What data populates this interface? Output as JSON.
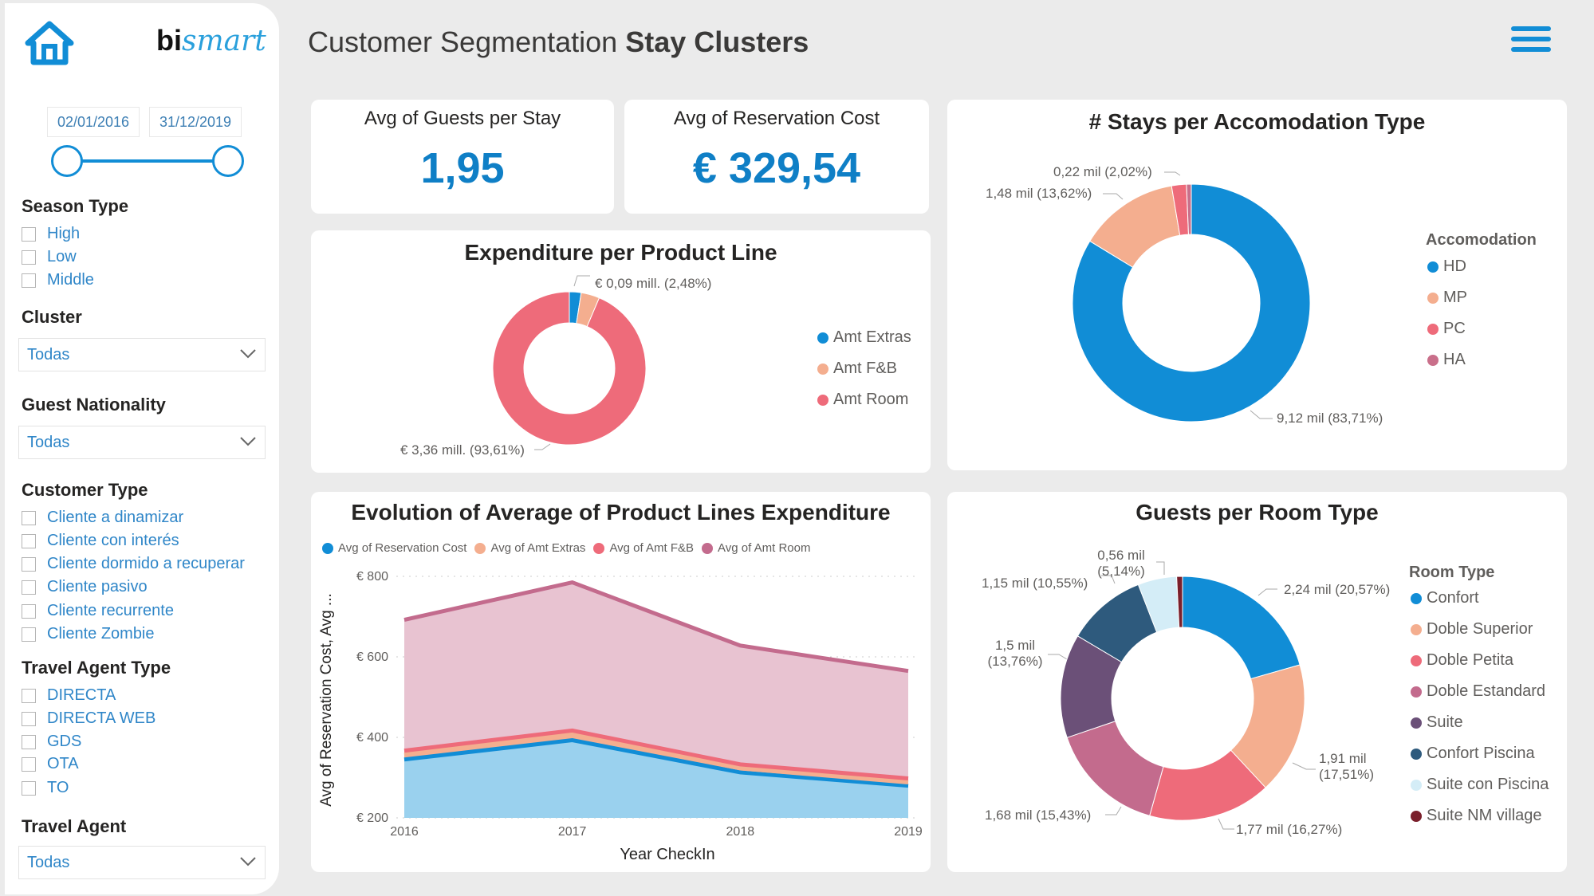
{
  "header": {
    "title_light": "Customer Segmentation",
    "title_bold": "Stay Clusters",
    "menu_icon": "hamburger-icon"
  },
  "sidebar": {
    "home_icon": "home-icon",
    "logo": "bismart",
    "date_start": "02/01/2016",
    "date_end": "31/12/2019",
    "season_type": {
      "title": "Season Type",
      "items": [
        "High",
        "Low",
        "Middle"
      ]
    },
    "cluster": {
      "title": "Cluster",
      "value": "Todas"
    },
    "guest_nationality": {
      "title": "Guest Nationality",
      "value": "Todas"
    },
    "customer_type": {
      "title": "Customer Type",
      "items": [
        "Cliente a dinamizar",
        "Cliente con interés",
        "Cliente dormido a recuperar",
        "Cliente pasivo",
        "Cliente recurrente",
        "Cliente Zombie"
      ]
    },
    "travel_agent_type": {
      "title": "Travel Agent Type",
      "items": [
        "DIRECTA",
        "DIRECTA WEB",
        "GDS",
        "OTA",
        "TO"
      ]
    },
    "travel_agent": {
      "title": "Travel Agent",
      "value": "Todas"
    }
  },
  "kpis": [
    {
      "label": "Avg of Guests per Stay",
      "value": "1,95"
    },
    {
      "label": "Avg of Reservation Cost",
      "value": "€ 329,54"
    }
  ],
  "colors": {
    "accent": "#118dd6",
    "text_blue": "#2f86c8"
  },
  "chart_data": [
    {
      "type": "pie",
      "donut": true,
      "title": "Expenditure per Product Line",
      "categories": [
        "Amt Extras",
        "Amt F&B",
        "Amt Room"
      ],
      "values": [
        2.48,
        3.91,
        93.61
      ],
      "colors": [
        "#118dd6",
        "#f4ae8f",
        "#ee6b7a"
      ],
      "data_labels": [
        "€ 0,09 mill. (2,48%)",
        "",
        "€ 3,36 mill. (93,61%)"
      ],
      "legend": "right"
    },
    {
      "type": "pie",
      "donut": true,
      "title": "# Stays per Accomodation Type",
      "legend_title": "Accomodation",
      "categories": [
        "HD",
        "MP",
        "PC",
        "HA"
      ],
      "values": [
        83.71,
        13.62,
        2.02,
        0.65
      ],
      "colors": [
        "#118dd6",
        "#f4ae8f",
        "#ee6b7a",
        "#c96f8a"
      ],
      "data_labels": [
        "9,12 mil (83,71%)",
        "1,48 mil (13,62%)",
        "0,22 mil (2,02%)",
        ""
      ],
      "legend": "right"
    },
    {
      "type": "area",
      "title": "Evolution of Average of Product Lines Expenditure",
      "x": [
        "2016",
        "2017",
        "2018",
        "2019"
      ],
      "xlabel": "Year CheckIn",
      "ylabel": "Avg of Reservation Cost, Avg ...",
      "ylim": [
        200,
        800
      ],
      "yticks": [
        "€ 200",
        "€ 400",
        "€ 600",
        "€ 800"
      ],
      "ytick_values": [
        200,
        400,
        600,
        800
      ],
      "grid": true,
      "legend": "top-left",
      "series": [
        {
          "name": "Avg of Amt Room",
          "values": [
            692,
            785,
            628,
            565
          ],
          "color": "#c36b8d",
          "fill": "#e8c3d1"
        },
        {
          "name": "Avg of Amt F&B",
          "values": [
            367,
            417,
            333,
            298
          ],
          "color": "#ee6b7a",
          "fill": "#f4ae8f"
        },
        {
          "name": "Avg of Amt Extras",
          "values": [
            356,
            406,
            323,
            288
          ],
          "color": "#f4ae8f",
          "fill": "#f4ae8f"
        },
        {
          "name": "Avg of Reservation Cost",
          "values": [
            345,
            393,
            313,
            280
          ],
          "color": "#118dd6",
          "fill": "#9ad1ee"
        }
      ],
      "legend_order": [
        "Avg of Reservation Cost",
        "Avg of Amt Extras",
        "Avg of Amt F&B",
        "Avg of Amt Room"
      ],
      "legend_colors": [
        "#118dd6",
        "#f4ae8f",
        "#ee6b7a",
        "#c36b8d"
      ]
    },
    {
      "type": "pie",
      "donut": true,
      "title": "Guests per Room Type",
      "legend_title": "Room Type",
      "categories": [
        "Confort",
        "Doble Superior",
        "Doble Petita",
        "Doble Estandard",
        "Suite",
        "Confort Piscina",
        "Suite con Piscina",
        "Suite NM village"
      ],
      "values": [
        20.57,
        17.51,
        16.27,
        15.43,
        13.76,
        10.55,
        5.14,
        0.77
      ],
      "colors": [
        "#118dd6",
        "#f4ae8f",
        "#ee6b7a",
        "#c36b8d",
        "#6b5078",
        "#2e5a7d",
        "#d4edf7",
        "#7a1f2b"
      ],
      "data_labels": [
        "2,24 mil (20,57%)",
        "1,91 mil (17,51%)",
        "1,77 mil (16,27%)",
        "1,68 mil (15,43%)",
        "1,5 mil (13,76%)",
        "1,15 mil (10,55%)",
        "0,56 mil (5,14%)",
        ""
      ],
      "legend": "right"
    }
  ]
}
